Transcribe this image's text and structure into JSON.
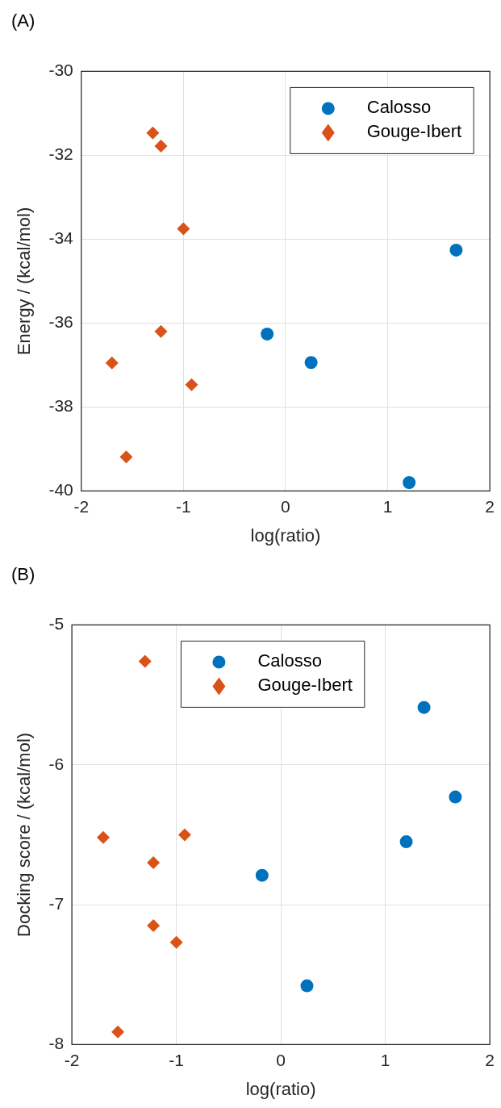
{
  "chart_data": [
    {
      "type": "scatter",
      "title": "(A)",
      "xlabel": "log(ratio)",
      "ylabel": "Energy / (kcal/mol)",
      "xlim": [
        -2,
        2
      ],
      "xticks": [
        -2,
        -1,
        0,
        1,
        2
      ],
      "ylim": [
        -40,
        -30
      ],
      "yticks": [
        -40,
        -38,
        -36,
        -34,
        -32,
        -30
      ],
      "grid": true,
      "legend": "top right",
      "series": [
        {
          "name": "Calosso",
          "color": "#0072bd",
          "marker": "circle",
          "x": [
            1.67,
            -0.18,
            0.25,
            1.21
          ],
          "values": [
            -34.26,
            -36.26,
            -36.94,
            -39.8
          ]
        },
        {
          "name": "Gouge-Ibert",
          "color": "#d95319",
          "marker": "diamond",
          "x": [
            -1.3,
            -1.22,
            -1.0,
            -1.22,
            -1.7,
            -0.92,
            -1.56
          ],
          "values": [
            -31.47,
            -31.78,
            -33.75,
            -36.2,
            -36.95,
            -37.47,
            -39.19
          ]
        }
      ]
    },
    {
      "type": "scatter",
      "title": "(B)",
      "xlabel": "log(ratio)",
      "ylabel": "Docking score / (kcal/mol)",
      "xlim": [
        -2,
        2
      ],
      "xticks": [
        -2,
        -1,
        0,
        1,
        2
      ],
      "ylim": [
        -8,
        -5
      ],
      "yticks": [
        -8,
        -7,
        -6,
        -5
      ],
      "grid": true,
      "legend": "top",
      "series": [
        {
          "name": "Calosso",
          "color": "#0072bd",
          "marker": "circle",
          "x": [
            1.37,
            1.67,
            1.2,
            -0.18,
            0.25
          ],
          "values": [
            -5.59,
            -6.23,
            -6.55,
            -6.79,
            -7.58
          ]
        },
        {
          "name": "Gouge-Ibert",
          "color": "#d95319",
          "marker": "diamond",
          "x": [
            -1.3,
            -1.7,
            -0.92,
            -1.22,
            -1.22,
            -1.0,
            -1.56
          ],
          "values": [
            -5.26,
            -6.52,
            -6.5,
            -6.7,
            -7.15,
            -7.27,
            -7.91
          ]
        }
      ]
    }
  ]
}
